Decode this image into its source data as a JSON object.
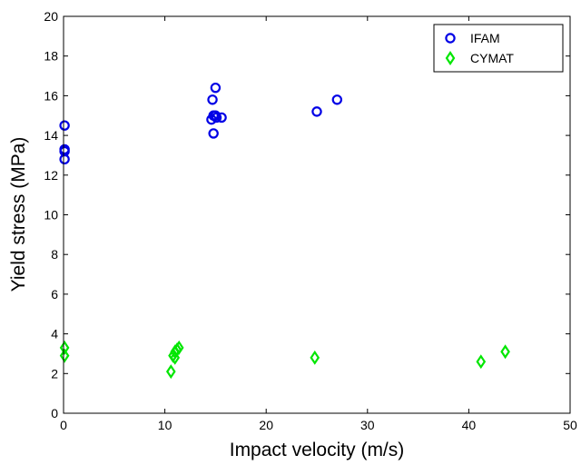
{
  "chart_data": {
    "type": "scatter",
    "title": "",
    "xlabel": "Impact velocity (m/s)",
    "ylabel": "Yield stress (MPa)",
    "xlim": [
      0,
      50
    ],
    "ylim": [
      0,
      20
    ],
    "xticks": [
      0,
      10,
      20,
      30,
      40,
      50
    ],
    "yticks": [
      0,
      2,
      4,
      6,
      8,
      10,
      12,
      14,
      16,
      18,
      20
    ],
    "xtick_labels": [
      "0",
      "10",
      "20",
      "30",
      "40",
      "50"
    ],
    "ytick_labels": [
      "0",
      "2",
      "4",
      "6",
      "8",
      "10",
      "12",
      "14",
      "16",
      "18",
      "20"
    ],
    "grid": false,
    "legend_position": "top-right",
    "series": [
      {
        "name": "IFAM",
        "marker": "circle",
        "color": "#0000e6",
        "points": [
          [
            0.1,
            14.5
          ],
          [
            0.1,
            13.3
          ],
          [
            0.1,
            13.2
          ],
          [
            0.1,
            12.8
          ],
          [
            14.7,
            15.8
          ],
          [
            15.0,
            16.4
          ],
          [
            14.8,
            15.0
          ],
          [
            15.0,
            15.0
          ],
          [
            14.6,
            14.8
          ],
          [
            15.1,
            14.9
          ],
          [
            15.6,
            14.9
          ],
          [
            14.8,
            14.1
          ],
          [
            25.0,
            15.2
          ],
          [
            27.0,
            15.8
          ]
        ]
      },
      {
        "name": "CYMAT",
        "marker": "diamond",
        "color": "#00e600",
        "points": [
          [
            0.1,
            3.3
          ],
          [
            0.1,
            2.9
          ],
          [
            10.6,
            2.1
          ],
          [
            10.8,
            2.9
          ],
          [
            11.0,
            3.1
          ],
          [
            11.2,
            3.2
          ],
          [
            11.4,
            3.3
          ],
          [
            11.0,
            2.8
          ],
          [
            24.8,
            2.8
          ],
          [
            41.2,
            2.6
          ],
          [
            43.6,
            3.1
          ]
        ]
      }
    ]
  }
}
